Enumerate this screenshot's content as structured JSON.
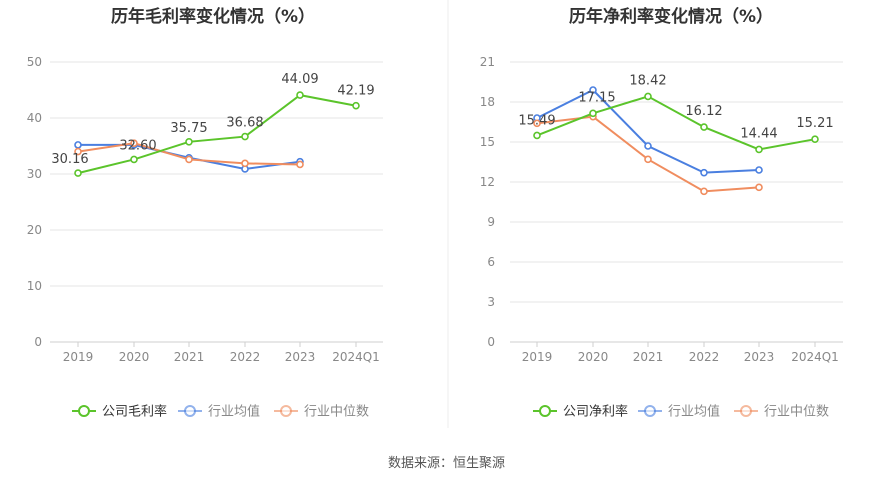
{
  "source_label": "数据来源：恒生聚源",
  "chart_data": [
    {
      "type": "line",
      "title": "历年毛利率变化情况（%）",
      "categories": [
        "2019",
        "2020",
        "2021",
        "2022",
        "2023",
        "2024Q1"
      ],
      "ylim": [
        0,
        50
      ],
      "yticks": [
        0,
        10,
        20,
        30,
        40,
        50
      ],
      "grid": true,
      "legend_position": "bottom",
      "series": [
        {
          "name": "公司毛利率",
          "color": "#5bc42b",
          "values": [
            30.16,
            32.6,
            35.75,
            36.68,
            44.09,
            42.19
          ],
          "labels": [
            "30.16",
            "32.60",
            "35.75",
            "36.68",
            "44.09",
            "42.19"
          ]
        },
        {
          "name": "行业均值",
          "color": "#4a7fe0",
          "values": [
            35.2,
            35.2,
            32.9,
            30.9,
            32.2,
            null
          ]
        },
        {
          "name": "行业中位数",
          "color": "#f08d5f",
          "values": [
            34.0,
            35.5,
            32.6,
            31.9,
            31.7,
            null
          ]
        }
      ]
    },
    {
      "type": "line",
      "title": "历年净利率变化情况（%）",
      "categories": [
        "2019",
        "2020",
        "2021",
        "2022",
        "2023",
        "2024Q1"
      ],
      "ylim": [
        0,
        21
      ],
      "yticks": [
        0,
        3,
        6,
        9,
        12,
        15,
        18,
        21
      ],
      "grid": true,
      "legend_position": "bottom",
      "series": [
        {
          "name": "公司净利率",
          "color": "#5bc42b",
          "values": [
            15.49,
            17.15,
            18.42,
            16.12,
            14.44,
            15.21
          ],
          "labels": [
            "15.49",
            "17.15",
            "18.42",
            "16.12",
            "14.44",
            "15.21"
          ]
        },
        {
          "name": "行业均值",
          "color": "#4a7fe0",
          "values": [
            16.8,
            18.9,
            14.7,
            12.7,
            12.9,
            null
          ]
        },
        {
          "name": "行业中位数",
          "color": "#f08d5f",
          "values": [
            16.4,
            16.9,
            13.7,
            11.3,
            11.6,
            null
          ]
        }
      ]
    }
  ]
}
